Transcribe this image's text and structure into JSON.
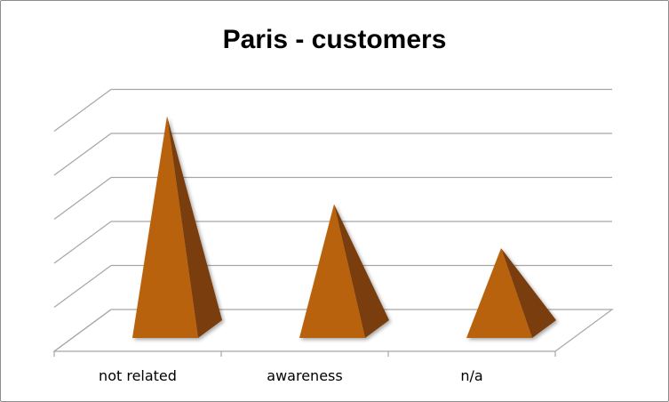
{
  "chart_data": {
    "type": "bar",
    "shape": "3d-pyramid",
    "title": "Paris - customers",
    "xlabel": "",
    "ylabel": "",
    "categories": [
      "not related",
      "awareness",
      "n/a"
    ],
    "values": [
      5.1,
      3.1,
      2.1
    ],
    "ylim": [
      0,
      5
    ],
    "grid": true,
    "legend": "none",
    "y_tick_labels_shown": false
  },
  "colors": {
    "pyramid_front": "#b8620b",
    "pyramid_side": "#7a3e08",
    "gridline": "#a6a6a6",
    "frame": "#8c8c8c"
  }
}
